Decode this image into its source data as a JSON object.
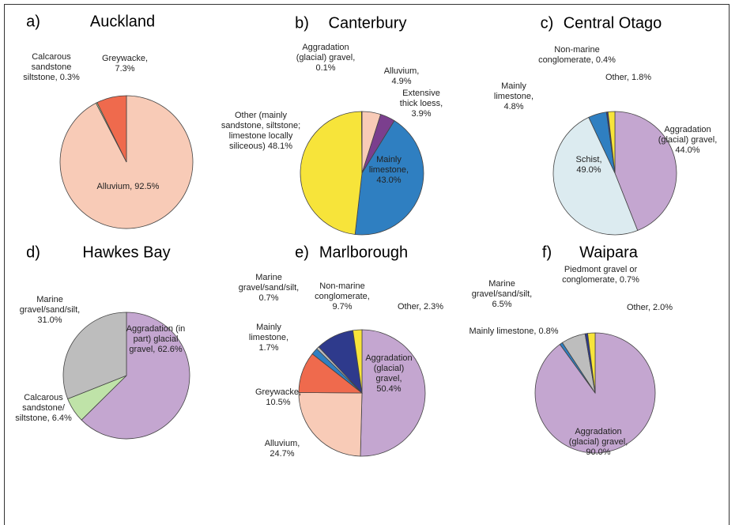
{
  "chart_data": [
    {
      "type": "pie",
      "label": "a)",
      "title": "Auckland",
      "categories": [
        "Alluvium,",
        "Calcarous sandstone siltstone,",
        "Greywacke,"
      ],
      "values": [
        92.5,
        0.3,
        7.3
      ],
      "value_labels": [
        "92.5%",
        "0.3%",
        "7.3%"
      ],
      "colors": [
        "#f8cbb7",
        "#b9dfa4",
        "#ef6a4d"
      ]
    },
    {
      "type": "pie",
      "label": "b)",
      "title": "Canterbury",
      "categories": [
        "Alluvium,",
        "Extensive thick loess,",
        "Mainly limestone,",
        "Other (mainly sandstone, siltstone; limestone locally siliceous)",
        "Aggradation (glacial) gravel,"
      ],
      "values": [
        4.9,
        3.9,
        43.0,
        48.1,
        0.1
      ],
      "value_labels": [
        "4.9%",
        "3.9%",
        "43.0%",
        "48.1%",
        "0.1%"
      ],
      "colors": [
        "#f8cbb7",
        "#7b3f8e",
        "#2f7fc1",
        "#f7e43a",
        "#c4a6d0"
      ]
    },
    {
      "type": "pie",
      "label": "c)",
      "title": "Central Otago",
      "categories": [
        "Aggradation (glacial) gravel,",
        "Schist,",
        "Mainly limestone,",
        "Non-marine conglomerate,",
        "Other,"
      ],
      "values": [
        44.0,
        49.0,
        4.8,
        0.4,
        1.8
      ],
      "value_labels": [
        "44.0%",
        "49.0%",
        "4.8%",
        "0.4%",
        "1.8%"
      ],
      "colors": [
        "#c4a6d0",
        "#dcebf0",
        "#2f7fc1",
        "#2e3a8c",
        "#f7e43a"
      ]
    },
    {
      "type": "pie",
      "label": "d)",
      "title": "Hawkes Bay",
      "categories": [
        "Aggradation (in part) glacial gravel,",
        "Calcarous sandstone/ siltstone,",
        "Marine gravel/sand/silt,"
      ],
      "values": [
        62.6,
        6.4,
        31.0
      ],
      "value_labels": [
        "62.6%",
        "6.4%",
        "31.0%"
      ],
      "colors": [
        "#c4a6d0",
        "#bfe3a8",
        "#bdbdbd"
      ]
    },
    {
      "type": "pie",
      "label": "e)",
      "title": "Marlborough",
      "categories": [
        "Aggradation (glacial) gravel,",
        "Alluvium,",
        "Greywacke,",
        "Mainly limestone,",
        "Marine gravel/sand/silt,",
        "Non-marine conglomerate,",
        "Other,"
      ],
      "values": [
        50.4,
        24.7,
        10.5,
        1.7,
        0.7,
        9.7,
        2.3
      ],
      "value_labels": [
        "50.4%",
        "24.7%",
        "10.5%",
        "1.7%",
        "0.7%",
        "9.7%",
        "2.3%"
      ],
      "colors": [
        "#c4a6d0",
        "#f8cbb7",
        "#ef6a4d",
        "#2f7fc1",
        "#bdbdbd",
        "#2e3a8c",
        "#f7e43a"
      ]
    },
    {
      "type": "pie",
      "label": "f)",
      "title": "Waipara",
      "categories": [
        "Aggradation (glacial) gravel,",
        "Mainly limestone,",
        "Marine gravel/sand/silt,",
        "Piedmont gravel or conglomerate,",
        "Other,"
      ],
      "values": [
        90.0,
        0.8,
        6.5,
        0.7,
        2.0
      ],
      "value_labels": [
        "90.0%",
        "0.8%",
        "6.5%",
        "0.7%",
        "2.0%"
      ],
      "colors": [
        "#c4a6d0",
        "#2f7fc1",
        "#bdbdbd",
        "#2e3a8c",
        "#f7e43a"
      ]
    }
  ]
}
